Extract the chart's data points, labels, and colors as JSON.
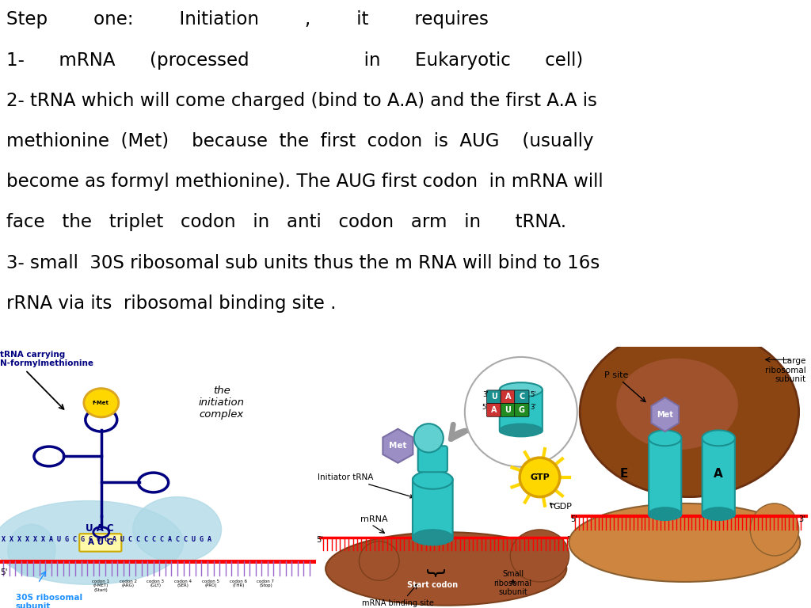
{
  "background_color": "#ffffff",
  "text_lines": [
    "Step        one:        Initiation        ,        it        requires",
    "1-      mRNA      (processed                    in      Eukaryotic      cell)",
    "2- tRNA which will come charged (bind to A.A) and the first A.A is",
    "methionine  (Met)    because  the  first  codon  is  AUG    (usually",
    "become as formyl methionine). The AUG first codon  in mRNA will",
    "face   the   triplet   codon   in   anti   codon   arm   in      tRNA.",
    "3- small  30S ribosomal sub units thus the m RNA will bind to 16s",
    "rRNA via its  ribosomal binding site ."
  ],
  "text_fontsize": 16.5,
  "text_color": "#000000",
  "fig_width": 10.24,
  "fig_height": 7.68,
  "dpi": 100
}
